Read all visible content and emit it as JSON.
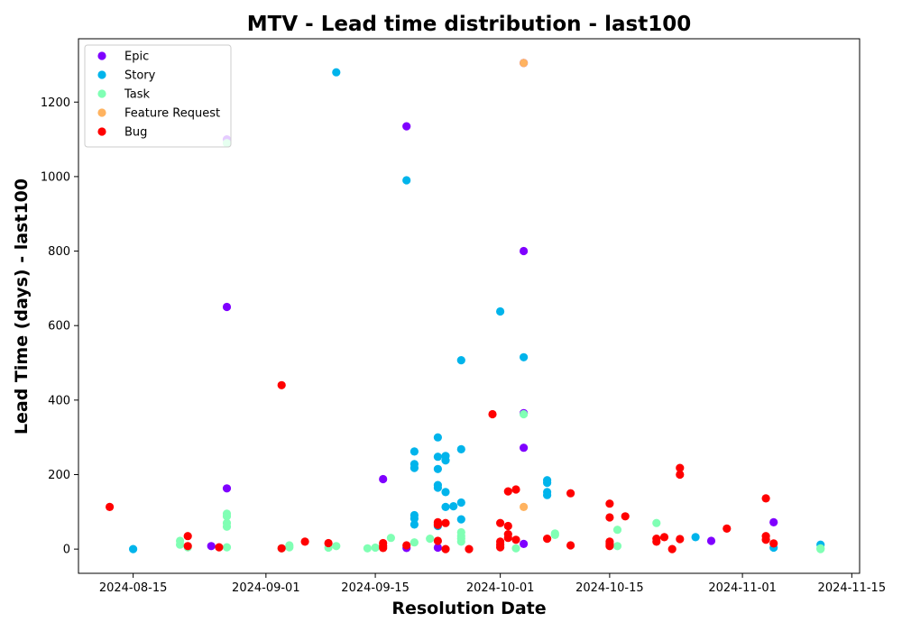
{
  "chart_data": {
    "type": "scatter",
    "title": "MTV - Lead time distribution - last100",
    "xlabel": "Resolution Date",
    "ylabel": "Lead Time (days) - last100",
    "x_type": "date",
    "xlim": [
      "2024-08-08",
      "2024-11-16"
    ],
    "ylim": [
      -65,
      1370
    ],
    "x_ticks": [
      "2024-08-15",
      "2024-09-01",
      "2024-09-15",
      "2024-10-01",
      "2024-10-15",
      "2024-11-01",
      "2024-11-15"
    ],
    "y_ticks": [
      0,
      200,
      400,
      600,
      800,
      1000,
      1200
    ],
    "grid": false,
    "legend_position": "top-left",
    "series": [
      {
        "name": "Epic",
        "color": "#7f00ff",
        "points": [
          [
            "2024-08-25",
            8
          ],
          [
            "2024-08-27",
            650
          ],
          [
            "2024-08-27",
            163
          ],
          [
            "2024-08-27",
            1100
          ],
          [
            "2024-09-16",
            188
          ],
          [
            "2024-09-19",
            1135
          ],
          [
            "2024-09-19",
            3
          ],
          [
            "2024-09-23",
            4
          ],
          [
            "2024-10-04",
            800
          ],
          [
            "2024-10-04",
            365
          ],
          [
            "2024-10-04",
            272
          ],
          [
            "2024-10-04",
            14
          ],
          [
            "2024-10-04",
            1305
          ],
          [
            "2024-10-28",
            22
          ],
          [
            "2024-11-05",
            72
          ]
        ]
      },
      {
        "name": "Story",
        "color": "#00b4eb",
        "points": [
          [
            "2024-08-15",
            0
          ],
          [
            "2024-09-10",
            1280
          ],
          [
            "2024-09-19",
            990
          ],
          [
            "2024-09-20",
            262
          ],
          [
            "2024-09-20",
            228
          ],
          [
            "2024-09-20",
            218
          ],
          [
            "2024-09-20",
            91
          ],
          [
            "2024-09-20",
            82
          ],
          [
            "2024-09-20",
            66
          ],
          [
            "2024-09-23",
            300
          ],
          [
            "2024-09-23",
            248
          ],
          [
            "2024-09-23",
            215
          ],
          [
            "2024-09-23",
            172
          ],
          [
            "2024-09-23",
            165
          ],
          [
            "2024-09-23",
            62
          ],
          [
            "2024-09-24",
            250
          ],
          [
            "2024-09-24",
            238
          ],
          [
            "2024-09-24",
            153
          ],
          [
            "2024-09-24",
            113
          ],
          [
            "2024-09-25",
            115
          ],
          [
            "2024-09-26",
            507
          ],
          [
            "2024-09-26",
            268
          ],
          [
            "2024-09-26",
            125
          ],
          [
            "2024-09-26",
            80
          ],
          [
            "2024-10-01",
            638
          ],
          [
            "2024-10-04",
            515
          ],
          [
            "2024-10-07",
            185
          ],
          [
            "2024-10-07",
            178
          ],
          [
            "2024-10-07",
            153
          ],
          [
            "2024-10-07",
            145
          ],
          [
            "2024-10-26",
            32
          ],
          [
            "2024-11-05",
            4
          ],
          [
            "2024-11-11",
            12
          ]
        ]
      },
      {
        "name": "Task",
        "color": "#80ffb4",
        "points": [
          [
            "2024-08-21",
            22
          ],
          [
            "2024-08-21",
            12
          ],
          [
            "2024-08-22",
            5
          ],
          [
            "2024-08-27",
            1090
          ],
          [
            "2024-08-27",
            95
          ],
          [
            "2024-08-27",
            88
          ],
          [
            "2024-08-27",
            70
          ],
          [
            "2024-08-27",
            60
          ],
          [
            "2024-08-27",
            5
          ],
          [
            "2024-09-03",
            2
          ],
          [
            "2024-09-04",
            5
          ],
          [
            "2024-09-04",
            10
          ],
          [
            "2024-09-09",
            4
          ],
          [
            "2024-09-10",
            8
          ],
          [
            "2024-09-14",
            2
          ],
          [
            "2024-09-15",
            4
          ],
          [
            "2024-09-17",
            30
          ],
          [
            "2024-09-20",
            18
          ],
          [
            "2024-09-22",
            28
          ],
          [
            "2024-09-26",
            45
          ],
          [
            "2024-09-26",
            35
          ],
          [
            "2024-09-26",
            28
          ],
          [
            "2024-09-26",
            20
          ],
          [
            "2024-10-03",
            2
          ],
          [
            "2024-10-04",
            362
          ],
          [
            "2024-10-08",
            42
          ],
          [
            "2024-10-08",
            38
          ],
          [
            "2024-10-16",
            52
          ],
          [
            "2024-10-16",
            8
          ],
          [
            "2024-10-21",
            70
          ],
          [
            "2024-11-11",
            0
          ],
          [
            "2024-11-11",
            2
          ]
        ]
      },
      {
        "name": "Feature Request",
        "color": "#ffb360",
        "points": [
          [
            "2024-10-04",
            1305
          ],
          [
            "2024-10-04",
            113
          ]
        ]
      },
      {
        "name": "Bug",
        "color": "#ff0000",
        "points": [
          [
            "2024-08-12",
            113
          ],
          [
            "2024-08-22",
            35
          ],
          [
            "2024-08-22",
            8
          ],
          [
            "2024-08-26",
            5
          ],
          [
            "2024-09-03",
            440
          ],
          [
            "2024-09-03",
            2
          ],
          [
            "2024-09-06",
            20
          ],
          [
            "2024-09-09",
            16
          ],
          [
            "2024-09-16",
            16
          ],
          [
            "2024-09-16",
            8
          ],
          [
            "2024-09-16",
            3
          ],
          [
            "2024-09-19",
            10
          ],
          [
            "2024-09-23",
            72
          ],
          [
            "2024-09-23",
            68
          ],
          [
            "2024-09-23",
            65
          ],
          [
            "2024-09-23",
            22
          ],
          [
            "2024-09-24",
            70
          ],
          [
            "2024-09-24",
            0
          ],
          [
            "2024-09-27",
            0
          ],
          [
            "2024-09-30",
            362
          ],
          [
            "2024-10-01",
            70
          ],
          [
            "2024-10-01",
            20
          ],
          [
            "2024-10-01",
            12
          ],
          [
            "2024-10-01",
            5
          ],
          [
            "2024-10-02",
            155
          ],
          [
            "2024-10-02",
            62
          ],
          [
            "2024-10-02",
            40
          ],
          [
            "2024-10-02",
            30
          ],
          [
            "2024-10-03",
            160
          ],
          [
            "2024-10-03",
            25
          ],
          [
            "2024-10-07",
            28
          ],
          [
            "2024-10-10",
            150
          ],
          [
            "2024-10-10",
            10
          ],
          [
            "2024-10-15",
            122
          ],
          [
            "2024-10-15",
            85
          ],
          [
            "2024-10-15",
            20
          ],
          [
            "2024-10-15",
            14
          ],
          [
            "2024-10-15",
            8
          ],
          [
            "2024-10-17",
            88
          ],
          [
            "2024-10-21",
            28
          ],
          [
            "2024-10-21",
            20
          ],
          [
            "2024-10-22",
            32
          ],
          [
            "2024-10-23",
            0
          ],
          [
            "2024-10-24",
            218
          ],
          [
            "2024-10-24",
            200
          ],
          [
            "2024-10-24",
            27
          ],
          [
            "2024-10-30",
            55
          ],
          [
            "2024-11-04",
            136
          ],
          [
            "2024-11-04",
            35
          ],
          [
            "2024-11-04",
            25
          ],
          [
            "2024-11-05",
            15
          ]
        ]
      }
    ]
  }
}
